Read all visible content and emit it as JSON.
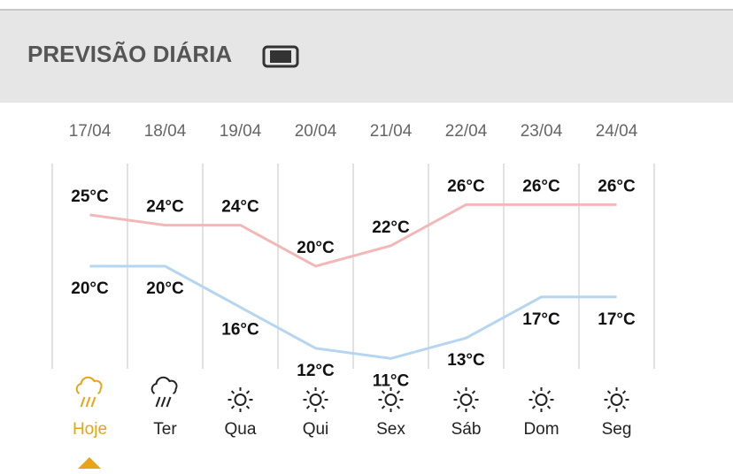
{
  "header": {
    "title": "PREVISÃO DIÁRIA"
  },
  "chart_data": {
    "type": "line",
    "categories": [
      "17/04",
      "18/04",
      "19/04",
      "20/04",
      "21/04",
      "22/04",
      "23/04",
      "24/04"
    ],
    "days": [
      "Hoje",
      "Ter",
      "Qua",
      "Qui",
      "Sex",
      "Sáb",
      "Dom",
      "Seg"
    ],
    "icons": [
      "rain",
      "rain",
      "sun",
      "sun",
      "sun",
      "sun",
      "sun",
      "sun"
    ],
    "ylim": [
      10,
      30
    ],
    "series": [
      {
        "color": "#f2b8b8",
        "values": [
          25,
          24,
          24,
          20,
          22,
          26,
          26,
          26
        ],
        "value_labels": [
          "25°C",
          "24°C",
          "24°C",
          "20°C",
          "22°C",
          "26°C",
          "26°C",
          "26°C"
        ]
      },
      {
        "color": "#b5d5f0",
        "values": [
          20,
          20,
          16,
          12,
          11,
          13,
          17,
          17
        ],
        "value_labels": [
          "20°C",
          "20°C",
          "16°C",
          "12°C",
          "11°C",
          "13°C",
          "17°C",
          "17°C"
        ]
      }
    ]
  }
}
